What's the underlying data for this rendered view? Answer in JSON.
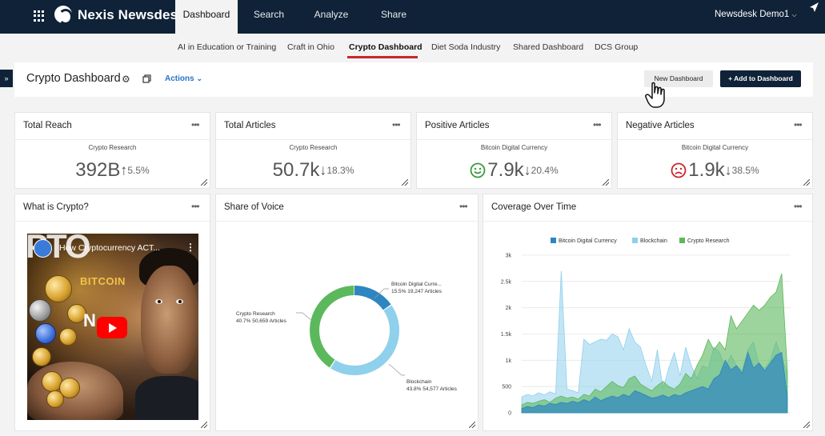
{
  "app": {
    "brand": "Nexis Newsdesk",
    "user": "Newsdesk Demo1"
  },
  "nav": {
    "tabs": [
      "Dashboard",
      "Search",
      "Analyze",
      "Share"
    ],
    "active": "Dashboard"
  },
  "subtabs": {
    "items": [
      "AI in Education or Training",
      "Craft in Ohio",
      "Crypto Dashboard",
      "Diet Soda Industry",
      "Shared Dashboard",
      "DCS Group"
    ],
    "active": "Crypto Dashboard"
  },
  "header": {
    "title": "Crypto Dashboard",
    "actions_label": "Actions",
    "new_dashboard": "New Dashboard",
    "add_dashboard": "+ Add to Dashboard"
  },
  "kpis": [
    {
      "title": "Total Reach",
      "subtitle": "Crypto Research",
      "value": "392B",
      "direction": "up",
      "change": "5.5%"
    },
    {
      "title": "Total Articles",
      "subtitle": "Crypto Research",
      "value": "50.7k",
      "direction": "down",
      "change": "18.3%"
    },
    {
      "title": "Positive Articles",
      "subtitle": "Bitcoin Digital Currency",
      "value": "7.9k",
      "direction": "down",
      "change": "20.4%",
      "sentiment": "positive",
      "sentiment_color": "#3a9a3a"
    },
    {
      "title": "Negative Articles",
      "subtitle": "Bitcoin Digital Currency",
      "value": "1.9k",
      "direction": "down",
      "change": "38.5%",
      "sentiment": "negative",
      "sentiment_color": "#c9252b"
    }
  ],
  "video_card": {
    "title": "What is Crypto?",
    "video_title": "How Cryptocurrency ACT...",
    "overlay_text": "BITCOIN",
    "overlay_big": "PTO",
    "overlay_n": "N"
  },
  "share_of_voice": {
    "title": "Share of Voice",
    "slices": [
      {
        "name": "Bitcoin Digital Curre...",
        "stats": "15.5% 19,247 Articles",
        "percent": 15.5,
        "color": "#2e86c1"
      },
      {
        "name": "Blockchain",
        "stats": "43.8% 54,577 Articles",
        "percent": 43.8,
        "color": "#8fd0ec"
      },
      {
        "name": "Crypto Research",
        "stats": "40.7% 50,659 Articles",
        "percent": 40.7,
        "color": "#5cb85c"
      }
    ]
  },
  "coverage": {
    "title": "Coverage Over Time",
    "legend": [
      {
        "name": "Bitcoin Digital Currency",
        "color": "#2e86c1"
      },
      {
        "name": "Blockchain",
        "color": "#8fd0ec"
      },
      {
        "name": "Crypto Research",
        "color": "#5cb85c"
      }
    ],
    "y_ticks": [
      "3k",
      "2.5k",
      "2k",
      "1.5k",
      "1k",
      "500",
      "0"
    ]
  },
  "chart_data": {
    "type": "area",
    "title": "Coverage Over Time",
    "ylim": [
      0,
      3000
    ],
    "yticks": [
      3000,
      2500,
      2000,
      1500,
      1000,
      500,
      0
    ],
    "grid": true,
    "legend_position": "top",
    "series": [
      {
        "name": "Blockchain",
        "values": [
          300,
          350,
          320,
          380,
          340,
          400,
          360,
          2700,
          450,
          420,
          380,
          1400,
          1300,
          1350,
          1400,
          1380,
          1500,
          1450,
          1200,
          1600,
          1350,
          1250,
          900,
          600,
          1200,
          450,
          850,
          1150,
          700,
          1250,
          900,
          650,
          900,
          850,
          1250,
          1150,
          850,
          1100,
          900,
          800,
          1200,
          1350,
          900,
          850,
          1000,
          1350,
          1050,
          750
        ]
      },
      {
        "name": "Crypto Research",
        "values": [
          150,
          200,
          180,
          220,
          250,
          200,
          280,
          320,
          280,
          300,
          260,
          350,
          320,
          450,
          400,
          500,
          600,
          520,
          480,
          650,
          700,
          550,
          480,
          420,
          520,
          600,
          500,
          450,
          550,
          750,
          650,
          900,
          1100,
          1400,
          1200,
          1350,
          1200,
          1850,
          1600,
          1750,
          1900,
          2050,
          1950,
          2050,
          2200,
          2300,
          2650,
          800
        ]
      },
      {
        "name": "Bitcoin Digital Currency",
        "values": [
          80,
          120,
          100,
          150,
          130,
          180,
          160,
          200,
          180,
          220,
          190,
          250,
          210,
          300,
          230,
          280,
          320,
          290,
          350,
          310,
          420,
          380,
          330,
          280,
          300,
          340,
          290,
          350,
          320,
          380,
          420,
          460,
          500,
          450,
          650,
          720,
          1000,
          820,
          900,
          750,
          1150,
          850,
          950,
          800,
          950,
          1100,
          1150,
          300
        ]
      }
    ]
  }
}
